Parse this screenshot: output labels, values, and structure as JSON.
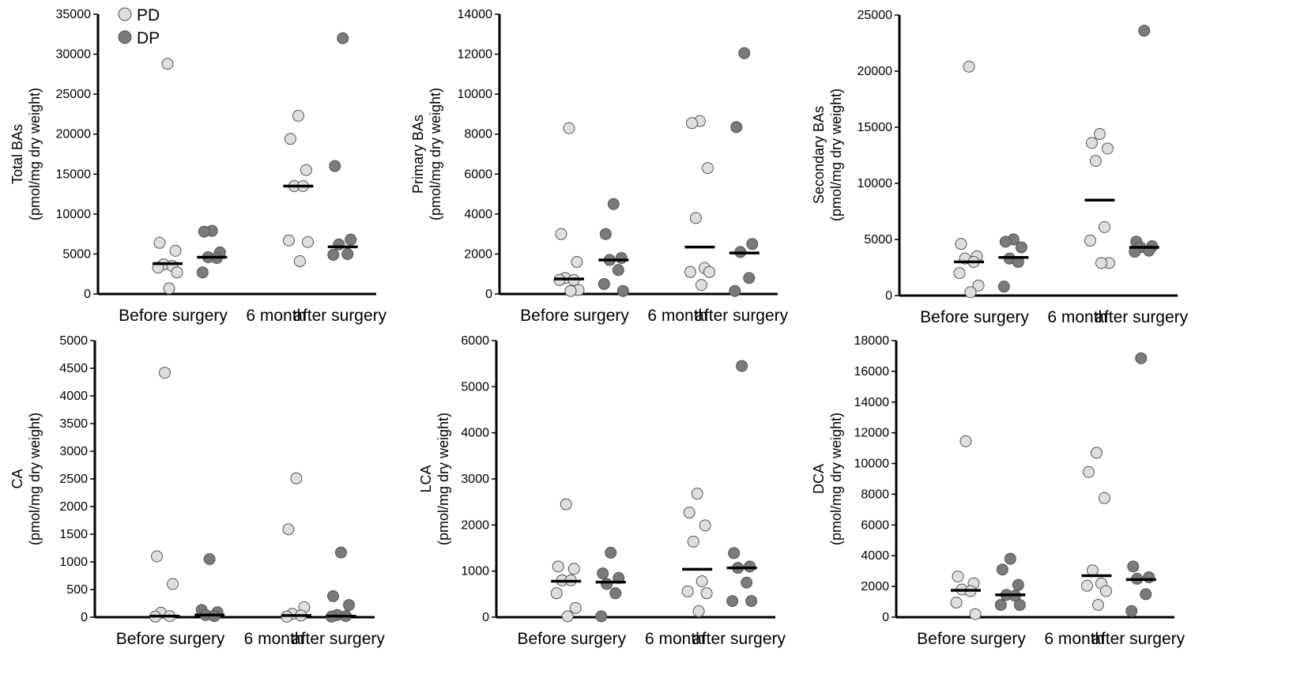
{
  "legend": [
    {
      "name": "PD",
      "color": "#dedede"
    },
    {
      "name": "DP",
      "color": "#7a7a7a"
    }
  ],
  "colors": {
    "pd": "#dedede",
    "dp": "#7a7a7a",
    "stroke": "#555555",
    "axis": "#000000",
    "median": "#000000"
  },
  "chart_data": [
    {
      "type": "scatter",
      "ylabel_lines": [
        "Total BAs",
        "(pmol/mg dry weight)"
      ],
      "ylim": [
        0,
        35000
      ],
      "yticks": [
        0,
        5000,
        10000,
        15000,
        20000,
        25000,
        30000,
        35000
      ],
      "categories": [
        "Before surgery",
        "6 month after surgery"
      ],
      "category_labels": [
        "Before surgery",
        "6 month",
        "after surgery"
      ],
      "series": [
        {
          "name": "PD",
          "groups": [
            {
              "category": "Before surgery",
              "values": [
                28800,
                6400,
                5400,
                3700,
                3500,
                3300,
                2700,
                700
              ],
              "median": 3800
            },
            {
              "category": "6 month after surgery",
              "values": [
                22300,
                19400,
                15500,
                13500,
                13500,
                6700,
                6500,
                4100
              ],
              "median": 13500
            }
          ]
        },
        {
          "name": "DP",
          "groups": [
            {
              "category": "Before surgery",
              "values": [
                7900,
                7800,
                5200,
                4600,
                4500,
                2700
              ],
              "median": 4600
            },
            {
              "category": "6 month after surgery",
              "values": [
                32000,
                16000,
                6800,
                6200,
                5000,
                4900
              ],
              "median": 5900
            }
          ]
        }
      ]
    },
    {
      "type": "scatter",
      "ylabel_lines": [
        "Primary BAs",
        "(pmol/mg dry weight)"
      ],
      "ylim": [
        0,
        14000
      ],
      "yticks": [
        0,
        2000,
        4000,
        6000,
        8000,
        10000,
        12000,
        14000
      ],
      "categories": [
        "Before surgery",
        "6 month after surgery"
      ],
      "category_labels": [
        "Before surgery",
        "6 month",
        "after surgery"
      ],
      "series": [
        {
          "name": "PD",
          "groups": [
            {
              "category": "Before surgery",
              "values": [
                8300,
                3000,
                1600,
                800,
                700,
                700,
                200,
                150
              ],
              "median": 750
            },
            {
              "category": "6 month after surgery",
              "values": [
                8650,
                8550,
                6300,
                3800,
                1300,
                1100,
                1100,
                450
              ],
              "median": 2350
            }
          ]
        },
        {
          "name": "DP",
          "groups": [
            {
              "category": "Before surgery",
              "values": [
                4500,
                3000,
                1800,
                1700,
                1200,
                500,
                150
              ],
              "median": 1700
            },
            {
              "category": "6 month after surgery",
              "values": [
                12050,
                8350,
                2500,
                2100,
                800,
                150
              ],
              "median": 2050
            }
          ]
        }
      ]
    },
    {
      "type": "scatter",
      "ylabel_lines": [
        "Secondary BAs",
        "(pmol/mg dry weight)"
      ],
      "ylim": [
        0,
        25000
      ],
      "yticks": [
        0,
        5000,
        10000,
        15000,
        20000,
        25000
      ],
      "categories": [
        "Before surgery",
        "6 month after surgery"
      ],
      "category_labels": [
        "Before surgery",
        "6 month",
        "after surgery"
      ],
      "series": [
        {
          "name": "PD",
          "groups": [
            {
              "category": "Before surgery",
              "values": [
                20400,
                4600,
                3500,
                3300,
                3000,
                2000,
                900,
                300
              ],
              "median": 3000
            },
            {
              "category": "6 month after surgery",
              "values": [
                14400,
                13600,
                13100,
                12000,
                6100,
                4900,
                2900,
                2900
              ],
              "median": 8500
            }
          ]
        },
        {
          "name": "DP",
          "groups": [
            {
              "category": "Before surgery",
              "values": [
                5000,
                4800,
                4300,
                3300,
                3000,
                800
              ],
              "median": 3400
            },
            {
              "category": "6 month after surgery",
              "values": [
                23600,
                4800,
                4400,
                4300,
                4000,
                3900
              ],
              "median": 4300
            }
          ]
        }
      ]
    },
    {
      "type": "scatter",
      "ylabel_lines": [
        "CA",
        "(pmol/mg dry weight)"
      ],
      "ylim": [
        0,
        5000
      ],
      "yticks": [
        0,
        500,
        1000,
        1500,
        2000,
        2500,
        3000,
        3500,
        4000,
        4500,
        5000
      ],
      "categories": [
        "Before surgery",
        "6 month after surgery"
      ],
      "category_labels": [
        "Before surgery",
        "6 month",
        "after surgery"
      ],
      "series": [
        {
          "name": "PD",
          "groups": [
            {
              "category": "Before surgery",
              "values": [
                4420,
                1100,
                600,
                80,
                20,
                10
              ],
              "median": 20
            },
            {
              "category": "6 month after surgery",
              "values": [
                2510,
                1590,
                180,
                60,
                30,
                10
              ],
              "median": 30
            }
          ]
        },
        {
          "name": "DP",
          "groups": [
            {
              "category": "Before surgery",
              "values": [
                1050,
                130,
                90,
                40,
                20
              ],
              "median": 40
            },
            {
              "category": "6 month after surgery",
              "values": [
                1170,
                380,
                220,
                40,
                20,
                10
              ],
              "median": 20
            }
          ]
        }
      ]
    },
    {
      "type": "scatter",
      "ylabel_lines": [
        "LCA",
        "(pmol/mg dry weight)"
      ],
      "ylim": [
        0,
        6000
      ],
      "yticks": [
        0,
        1000,
        2000,
        3000,
        4000,
        5000,
        6000
      ],
      "categories": [
        "Before surgery",
        "6 month after surgery"
      ],
      "category_labels": [
        "Before surgery",
        "6 month",
        "after surgery"
      ],
      "series": [
        {
          "name": "PD",
          "groups": [
            {
              "category": "Before surgery",
              "values": [
                2450,
                1100,
                1050,
                800,
                800,
                520,
                200,
                20
              ],
              "median": 780
            },
            {
              "category": "6 month after surgery",
              "values": [
                2680,
                2270,
                1990,
                1640,
                780,
                560,
                520,
                130
              ],
              "median": 1040
            }
          ]
        },
        {
          "name": "DP",
          "groups": [
            {
              "category": "Before surgery",
              "values": [
                1400,
                950,
                850,
                720,
                520,
                20
              ],
              "median": 760
            },
            {
              "category": "6 month after surgery",
              "values": [
                5450,
                1390,
                1100,
                1070,
                750,
                350,
                350
              ],
              "median": 1070
            }
          ]
        }
      ]
    },
    {
      "type": "scatter",
      "ylabel_lines": [
        "DCA",
        "(pmol/mg dry weight)"
      ],
      "ylim": [
        0,
        18000
      ],
      "yticks": [
        0,
        2000,
        4000,
        6000,
        8000,
        10000,
        12000,
        14000,
        16000,
        18000
      ],
      "categories": [
        "Before surgery",
        "6 month after surgery"
      ],
      "category_labels": [
        "Before surgery",
        "6 month",
        "after surgery"
      ],
      "series": [
        {
          "name": "PD",
          "groups": [
            {
              "category": "Before surgery",
              "values": [
                11450,
                2650,
                2200,
                1800,
                1700,
                950,
                200
              ],
              "median": 1750
            },
            {
              "category": "6 month after surgery",
              "values": [
                10700,
                9450,
                7750,
                3050,
                2200,
                2050,
                1700,
                800
              ],
              "median": 2700
            }
          ]
        },
        {
          "name": "DP",
          "groups": [
            {
              "category": "Before surgery",
              "values": [
                3800,
                3100,
                2100,
                1450,
                1400,
                800,
                800
              ],
              "median": 1450
            },
            {
              "category": "6 month after surgery",
              "values": [
                16850,
                3300,
                2600,
                2500,
                1500,
                400
              ],
              "median": 2450
            }
          ]
        }
      ]
    }
  ]
}
